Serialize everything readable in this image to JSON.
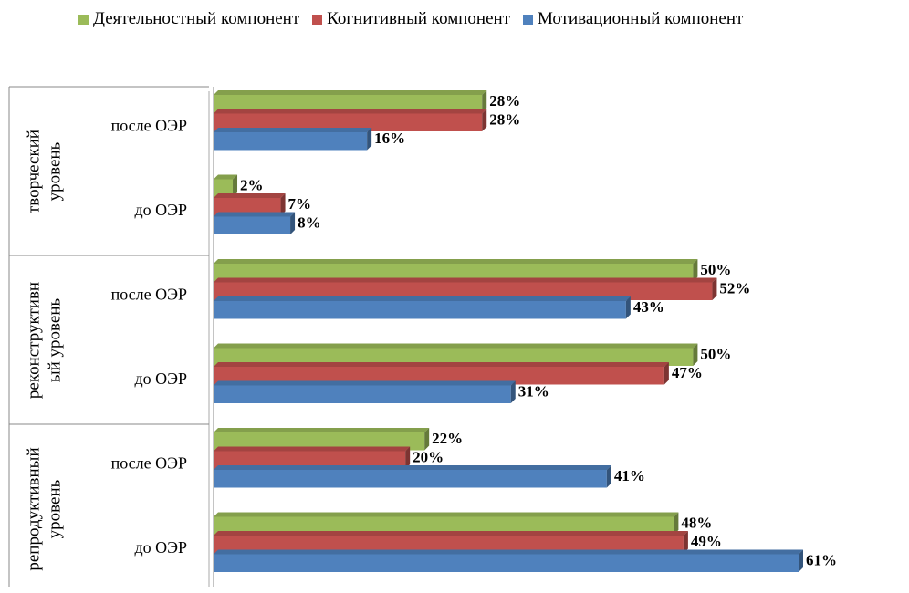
{
  "chart_data": {
    "type": "bar",
    "orientation": "horizontal",
    "groups": [
      {
        "label": "творческий\nуровень",
        "size": 2
      },
      {
        "label": "реконструктивн\nый уровень",
        "size": 2
      },
      {
        "label": "репродуктивный\nуровень",
        "size": 2
      }
    ],
    "categories": [
      "после ОЭР",
      "до ОЭР",
      "после ОЭР",
      "до ОЭР",
      "после ОЭР",
      "до ОЭР"
    ],
    "series": [
      {
        "name": "Деятельностный компонент",
        "color": "#9bbb59",
        "values": [
          28,
          2,
          50,
          50,
          22,
          48
        ],
        "value_labels": [
          "28%",
          "2%",
          "50%",
          "50%",
          "22%",
          "48%"
        ]
      },
      {
        "name": "Когнитивный компонент",
        "color": "#c0504d",
        "values": [
          28,
          7,
          52,
          47,
          20,
          49
        ],
        "value_labels": [
          "28%",
          "7%",
          "52%",
          "47%",
          "20%",
          "49%"
        ]
      },
      {
        "name": "Мотивационный компонент",
        "color": "#4f81bd",
        "values": [
          16,
          8,
          43,
          31,
          41,
          61
        ],
        "value_labels": [
          "16%",
          "8%",
          "43%",
          "31%",
          "41%",
          "61%"
        ]
      }
    ],
    "legend": "top"
  }
}
